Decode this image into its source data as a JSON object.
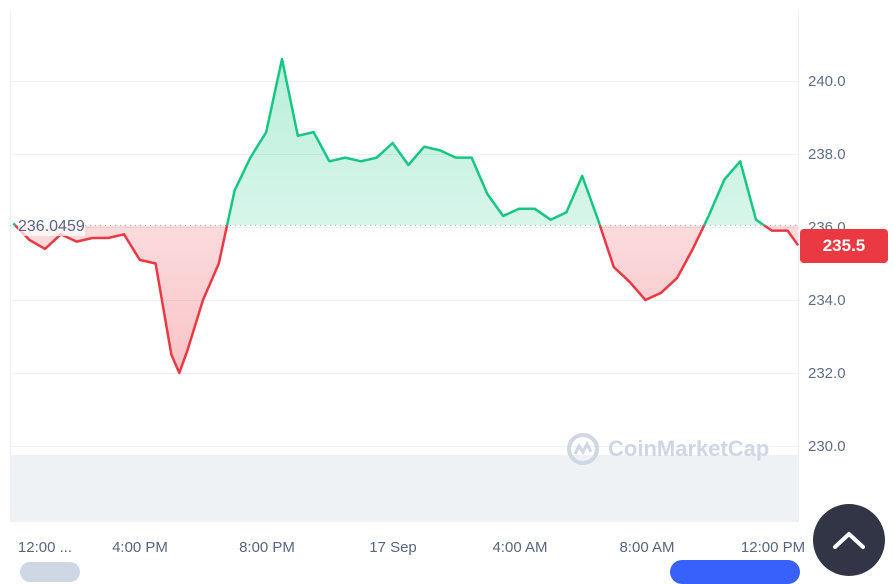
{
  "chart_data": {
    "type": "area",
    "baseline": 236.0459,
    "baseline_label": "236.0459",
    "current_price_label": "235.5",
    "ylim": [
      228.5,
      241.5
    ],
    "y_ticks": [
      "240.0",
      "238.0",
      "236.0",
      "234.0",
      "232.0",
      "230.0"
    ],
    "x_ticks": [
      "12:00 ...",
      "4:00 PM",
      "8:00 PM",
      "17 Sep",
      "4:00 AM",
      "8:00 AM",
      "12:00 PM"
    ],
    "grid": true,
    "colors": {
      "above": "#16c784",
      "below": "#ea3943",
      "grid": "#eff2f5",
      "volume": "#eff2f5"
    },
    "series": [
      {
        "points": [
          [
            "16 Sep 11:00",
            236.1
          ],
          [
            "16 Sep 11:30",
            235.65
          ],
          [
            "16 Sep 12:00",
            235.4
          ],
          [
            "16 Sep 12:30",
            235.8
          ],
          [
            "16 Sep 13:00",
            235.6
          ],
          [
            "16 Sep 13:30",
            235.7
          ],
          [
            "16 Sep 14:00",
            235.7
          ],
          [
            "16 Sep 14:30",
            235.8
          ],
          [
            "16 Sep 15:00",
            235.1
          ],
          [
            "16 Sep 15:30",
            235.0
          ],
          [
            "16 Sep 16:00",
            232.5
          ],
          [
            "16 Sep 16:15",
            232.0
          ],
          [
            "16 Sep 16:30",
            232.6
          ],
          [
            "16 Sep 17:00",
            234.0
          ],
          [
            "16 Sep 17:30",
            235.0
          ],
          [
            "16 Sep 18:00",
            237.0
          ],
          [
            "16 Sep 18:30",
            237.9
          ],
          [
            "16 Sep 19:00",
            238.6
          ],
          [
            "16 Sep 19:30",
            240.6
          ],
          [
            "16 Sep 20:00",
            238.5
          ],
          [
            "16 Sep 20:30",
            238.6
          ],
          [
            "16 Sep 21:00",
            237.8
          ],
          [
            "16 Sep 21:30",
            237.9
          ],
          [
            "16 Sep 22:00",
            237.8
          ],
          [
            "16 Sep 22:30",
            237.9
          ],
          [
            "16 Sep 23:00",
            238.3
          ],
          [
            "16 Sep 23:30",
            237.7
          ],
          [
            "17 Sep 00:00",
            238.2
          ],
          [
            "17 Sep 00:30",
            238.1
          ],
          [
            "17 Sep 01:00",
            237.9
          ],
          [
            "17 Sep 01:30",
            237.9
          ],
          [
            "17 Sep 02:00",
            236.9
          ],
          [
            "17 Sep 02:30",
            236.3
          ],
          [
            "17 Sep 03:00",
            236.5
          ],
          [
            "17 Sep 03:30",
            236.5
          ],
          [
            "17 Sep 04:00",
            236.2
          ],
          [
            "17 Sep 04:30",
            236.4
          ],
          [
            "17 Sep 05:00",
            237.4
          ],
          [
            "17 Sep 05:30",
            236.2
          ],
          [
            "17 Sep 06:00",
            234.9
          ],
          [
            "17 Sep 06:30",
            234.5
          ],
          [
            "17 Sep 07:00",
            234.0
          ],
          [
            "17 Sep 07:30",
            234.2
          ],
          [
            "17 Sep 08:00",
            234.6
          ],
          [
            "17 Sep 08:30",
            235.4
          ],
          [
            "17 Sep 09:00",
            236.3
          ],
          [
            "17 Sep 09:30",
            237.3
          ],
          [
            "17 Sep 10:00",
            237.8
          ],
          [
            "17 Sep 10:30",
            236.2
          ],
          [
            "17 Sep 11:00",
            235.9
          ],
          [
            "17 Sep 11:30",
            235.9
          ],
          [
            "17 Sep 11:50",
            235.5
          ]
        ]
      }
    ]
  },
  "watermark": "CoinMarketCap",
  "scroll_top_icon": "chevron-up-icon"
}
